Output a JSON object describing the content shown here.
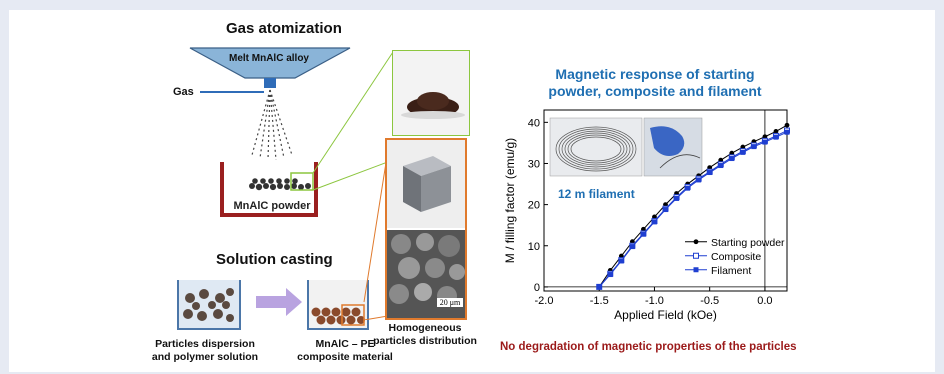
{
  "left": {
    "gas_title": "Gas atomization",
    "hopper_label": "Melt MnAlC alloy",
    "gas_label": "Gas",
    "powder_label": "MnAlC powder",
    "solution_title": "Solution casting",
    "caption_dispersion_1": "Particles dispersion",
    "caption_dispersion_2": "and polymer solution",
    "caption_composite_1": "MnAlC – PE",
    "caption_composite_2": "composite material",
    "caption_homog_1": "Homogeneous",
    "caption_homog_2": "particles distribution",
    "scale_bar": "20 μm"
  },
  "right": {
    "title_line1": "Magnetic response of starting",
    "title_line2": "powder, composite and filament",
    "inset_label": "12 m filament",
    "bottom_note": "No degradation of magnetic properties of the particles"
  },
  "colors": {
    "title_blue": "#1f6fb2",
    "note_red": "#9b1a1a",
    "green_frame": "#8cc63f",
    "orange_frame": "#e07a2d",
    "beaker_red": "#9a1f1f",
    "hopper_blue": "#8ab4d8",
    "arrow_purple": "#b9a3e0"
  },
  "chart_data": {
    "type": "line",
    "title": "Magnetic response of starting powder, composite and filament",
    "xlabel": "Applied Field (kOe)",
    "ylabel": "M / filling factor (emu/g)",
    "xlim": [
      -2.0,
      0.2
    ],
    "ylim": [
      -1,
      43
    ],
    "xticks": [
      "-2.0",
      "-1.5",
      "-1.0",
      "-0.5",
      "0.0"
    ],
    "yticks": [
      "0",
      "10",
      "20",
      "30",
      "40"
    ],
    "legend_position": "bottom-right",
    "series": [
      {
        "name": "Starting powder",
        "color": "#000000",
        "marker": "filled-circle",
        "x": [
          -1.5,
          -1.4,
          -1.3,
          -1.2,
          -1.1,
          -1.0,
          -0.9,
          -0.8,
          -0.7,
          -0.6,
          -0.5,
          -0.4,
          -0.3,
          -0.2,
          -0.1,
          0.0,
          0.1,
          0.2
        ],
        "y": [
          0,
          4,
          7.5,
          11,
          14,
          17,
          20,
          22.7,
          25,
          27,
          29,
          30.8,
          32.5,
          34,
          35.3,
          36.5,
          37.8,
          39.3
        ]
      },
      {
        "name": "Composite",
        "color": "#1f3fd1",
        "marker": "open-square",
        "x": [
          -1.5,
          -1.4,
          -1.3,
          -1.2,
          -1.1,
          -1.0,
          -0.9,
          -0.8,
          -0.7,
          -0.6,
          -0.5,
          -0.4,
          -0.3,
          -0.2,
          -0.1,
          0.0,
          0.1,
          0.2
        ],
        "y": [
          0,
          3.2,
          6.5,
          10,
          13,
          16,
          19,
          21.8,
          24.3,
          26.3,
          28,
          29.8,
          31.5,
          33,
          34.4,
          35.5,
          36.7,
          38
        ]
      },
      {
        "name": "Filament",
        "color": "#1f3fd1",
        "marker": "filled-square",
        "x": [
          -1.5,
          -1.4,
          -1.3,
          -1.2,
          -1.1,
          -1.0,
          -0.9,
          -0.8,
          -0.7,
          -0.6,
          -0.5,
          -0.4,
          -0.3,
          -0.2,
          -0.1,
          0.0,
          0.1,
          0.2
        ],
        "y": [
          0,
          3,
          6.3,
          9.8,
          12.8,
          15.8,
          18.8,
          21.5,
          24,
          26,
          27.8,
          29.5,
          31.2,
          32.7,
          34.1,
          35.2,
          36.4,
          37.6
        ]
      }
    ]
  }
}
